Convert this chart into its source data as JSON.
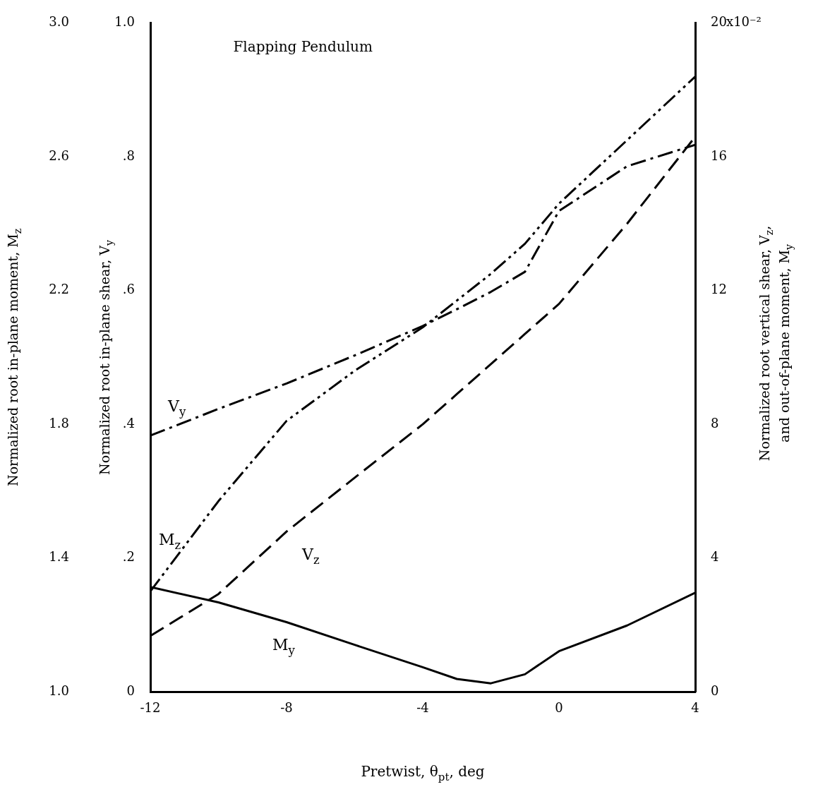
{
  "chart_data": {
    "type": "line",
    "title": "Flapping Pendulum",
    "xlabel": "Pretwist, θ$_{pt}$, deg",
    "ylabel": "Normalized root in-plane shear, V$_{y}$",
    "y2label": "Normalized root vertical shear, V$_{z}$, and out-of-plane moment, M$_{y}$",
    "y3label": "Normalized root in-plane moment, M$_{z}$",
    "x": [
      -12,
      -10,
      -8,
      -6,
      -4,
      -3,
      -2,
      -1,
      0,
      2,
      4
    ],
    "series": [
      {
        "name": "V$_{y}$",
        "color": "#000000",
        "axis": "y",
        "line_style": "dashed",
        "values": [
          0.383,
          0.423,
          0.461,
          0.503,
          0.547,
          0.572,
          0.598,
          0.628,
          0.719,
          0.786,
          0.818
        ]
      },
      {
        "name": "M$_{z}$",
        "color": "#000000",
        "axis": "y3",
        "line_style": "dashed",
        "values": [
          1.3,
          1.57,
          1.81,
          1.96,
          2.09,
          2.17,
          2.25,
          2.34,
          2.46,
          2.65,
          2.84
        ]
      },
      {
        "name": "V$_{z}$",
        "color": "#000000",
        "axis": "y2",
        "line_style": "dashed",
        "values": [
          1.67,
          2.92,
          4.79,
          6.4,
          8.0,
          8.9,
          9.8,
          10.7,
          11.6,
          14.0,
          16.6
        ]
      },
      {
        "name": "M$_{y}$",
        "color": "#000000",
        "axis": "y2",
        "line_style": "solid",
        "values": [
          3.13,
          2.67,
          2.08,
          1.4,
          0.73,
          0.38,
          0.25,
          0.52,
          1.21,
          1.98,
          2.96
        ]
      }
    ],
    "xlim": [
      -12,
      4
    ],
    "xticks": [
      -12,
      -8,
      -4,
      0,
      4
    ],
    "ylim": [
      0,
      1
    ],
    "yticks": [
      {
        "value": 0,
        "label": "0"
      },
      {
        "value": 0.2,
        "label": ".2"
      },
      {
        "value": 0.4,
        "label": ".4"
      },
      {
        "value": 0.6,
        "label": ".6"
      },
      {
        "value": 0.8,
        "label": ".8"
      },
      {
        "value": 1,
        "label": "1.0"
      }
    ],
    "y2lim": [
      0,
      20
    ],
    "y2ticks": [
      0,
      4,
      8,
      12,
      16,
      20
    ],
    "annotations": [
      "x10⁻²"
    ],
    "y3lim": [
      1,
      3
    ],
    "y3ticks": [
      {
        "value": 1,
        "label": "1.0"
      },
      1.4,
      1.8,
      2.2,
      2.6,
      {
        "value": 3,
        "label": "3.0"
      }
    ],
    "grid": false,
    "legend": false,
    "marker": "none"
  }
}
